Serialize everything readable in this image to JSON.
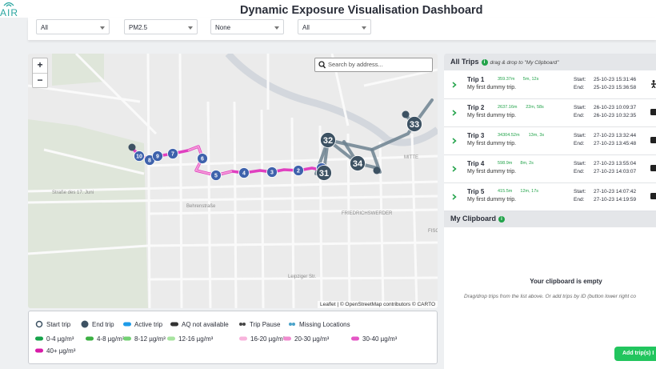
{
  "header": {
    "logo": "AIR",
    "title": "Dynamic Exposure Visualisation Dashboard"
  },
  "filters": [
    "All",
    "PM2.5",
    "None",
    "All"
  ],
  "map": {
    "zoom_in": "+",
    "zoom_out": "−",
    "search_placeholder": "Search by address...",
    "place_labels": [
      "MITTE",
      "FRIEDRICHSWERDER",
      "FISCHER",
      "Behrenstraße",
      "Leipziger Str.",
      "Straße des 17. Juni"
    ],
    "markers": [
      "10",
      "8",
      "9",
      "7",
      "6",
      "5",
      "4",
      "3",
      "2",
      "1",
      "32",
      "33",
      "34",
      "31"
    ],
    "attribution": "Leaflet | © OpenStreetMap contributors © CARTO"
  },
  "legend": {
    "trip_items": [
      "Start trip",
      "End trip",
      "Active trip",
      "AQ not available",
      "Trip Pause",
      "Missing Locations"
    ],
    "aq_items": [
      {
        "label": "0-4 µg/m³",
        "color": "#16a34a"
      },
      {
        "label": "4-8 µg/m³",
        "color": "#3cb043"
      },
      {
        "label": "8-12 µg/m³",
        "color": "#74d174"
      },
      {
        "label": "12-16 µg/m³",
        "color": "#a8e4a0"
      },
      {
        "label": "16-20 µg/m³",
        "color": "#f8b4dc"
      },
      {
        "label": "20-30 µg/m³",
        "color": "#f08ccf"
      },
      {
        "label": "30-40 µg/m³",
        "color": "#e456c5"
      },
      {
        "label": "40+ µg/m³",
        "color": "#d81ba8"
      }
    ]
  },
  "trips_panel": {
    "title": "All Trips",
    "hint": "drag & drop to \"My Clipboard\"",
    "start_label": "Start:",
    "end_label": "End:",
    "trips": [
      {
        "name": "Trip 1",
        "distance": "359.37m",
        "duration": "5m, 12s",
        "description": "My first dummy trip.",
        "start": "25-10-23 15:31:46",
        "end": "25-10-23 15:36:58"
      },
      {
        "name": "Trip 2",
        "distance": "2637.16m",
        "duration": "22m, 58s",
        "description": "My first dummy trip.",
        "start": "26-10-23 10:09:37",
        "end": "26-10-23 10:32:35"
      },
      {
        "name": "Trip 3",
        "distance": "34304.52m",
        "duration": "13m, 3s",
        "description": "My first dummy trip.",
        "start": "27-10-23 13:32:44",
        "end": "27-10-23 13:45:48"
      },
      {
        "name": "Trip 4",
        "distance": "598.9m",
        "duration": "8m, 2s",
        "description": "My first dummy trip.",
        "start": "27-10-23 13:55:04",
        "end": "27-10-23 14:03:07"
      },
      {
        "name": "Trip 5",
        "distance": "415.5m",
        "duration": "12m, 17s",
        "description": "My first dummy trip.",
        "start": "27-10-23 14:07:42",
        "end": "27-10-23 14:19:59"
      }
    ]
  },
  "clipboard": {
    "title": "My Clipboard",
    "empty_title": "Your clipboard is empty",
    "empty_text": "Drag/drop trips from the list above. Or add trips by ID (button lower right co",
    "button": "Add trip(s) I"
  }
}
